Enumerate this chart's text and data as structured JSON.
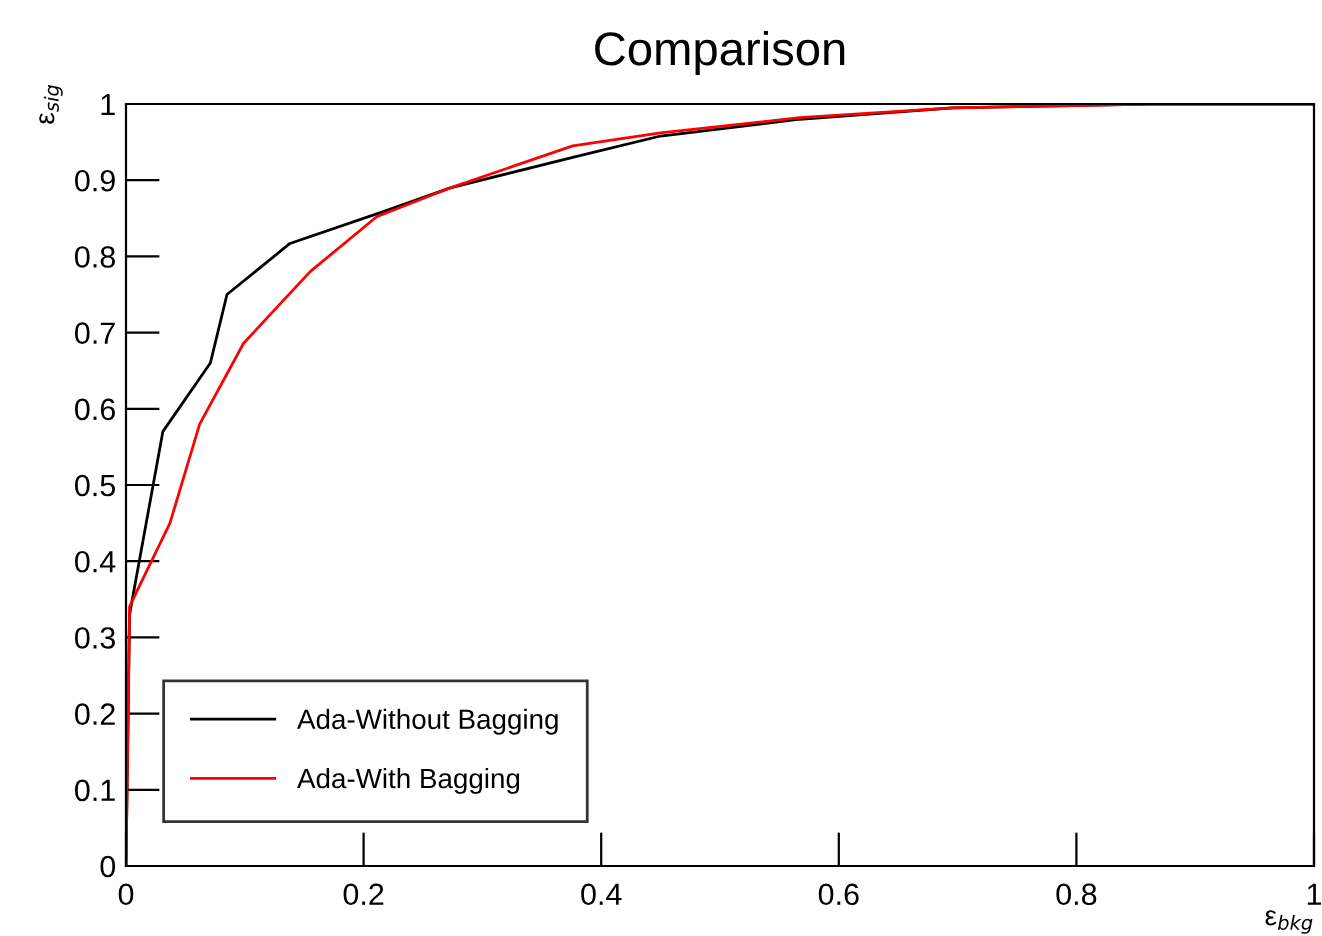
{
  "chart_data": {
    "type": "line",
    "title": "Comparison",
    "xlabel": "ε$_{bkg}$",
    "ylabel": "ε$_{sig}$",
    "xlim": [
      0,
      1
    ],
    "ylim": [
      0,
      1
    ],
    "xticks": [
      0,
      0.2,
      0.4,
      0.6,
      0.8,
      1
    ],
    "yticks": [
      0,
      0.1,
      0.2,
      0.3,
      0.4,
      0.5,
      0.6,
      0.7,
      0.8,
      0.9,
      1
    ],
    "grid": false,
    "legend": "bottom left",
    "marker": "none",
    "line_style": "solid",
    "series": [
      {
        "name": "Ada-Without Bagging",
        "color": "#000000",
        "x": [
          0,
          0.003,
          0.031,
          0.071,
          0.085,
          0.138,
          0.219,
          0.273,
          0.376,
          0.45,
          0.567,
          0.696,
          0.862,
          1
        ],
        "values": [
          0,
          0.33,
          0.57,
          0.66,
          0.75,
          0.817,
          0.86,
          0.89,
          0.93,
          0.958,
          0.98,
          0.995,
          1,
          1
        ]
      },
      {
        "name": "Ada-With Bagging",
        "color": "#ff0000",
        "x": [
          0,
          0.003,
          0.009,
          0.037,
          0.062,
          0.099,
          0.155,
          0.211,
          0.273,
          0.376,
          0.45,
          0.567,
          0.696,
          0.862,
          1
        ],
        "values": [
          0,
          0.34,
          0.36,
          0.45,
          0.58,
          0.686,
          0.78,
          0.852,
          0.89,
          0.945,
          0.962,
          0.982,
          0.995,
          1,
          1
        ]
      }
    ]
  }
}
